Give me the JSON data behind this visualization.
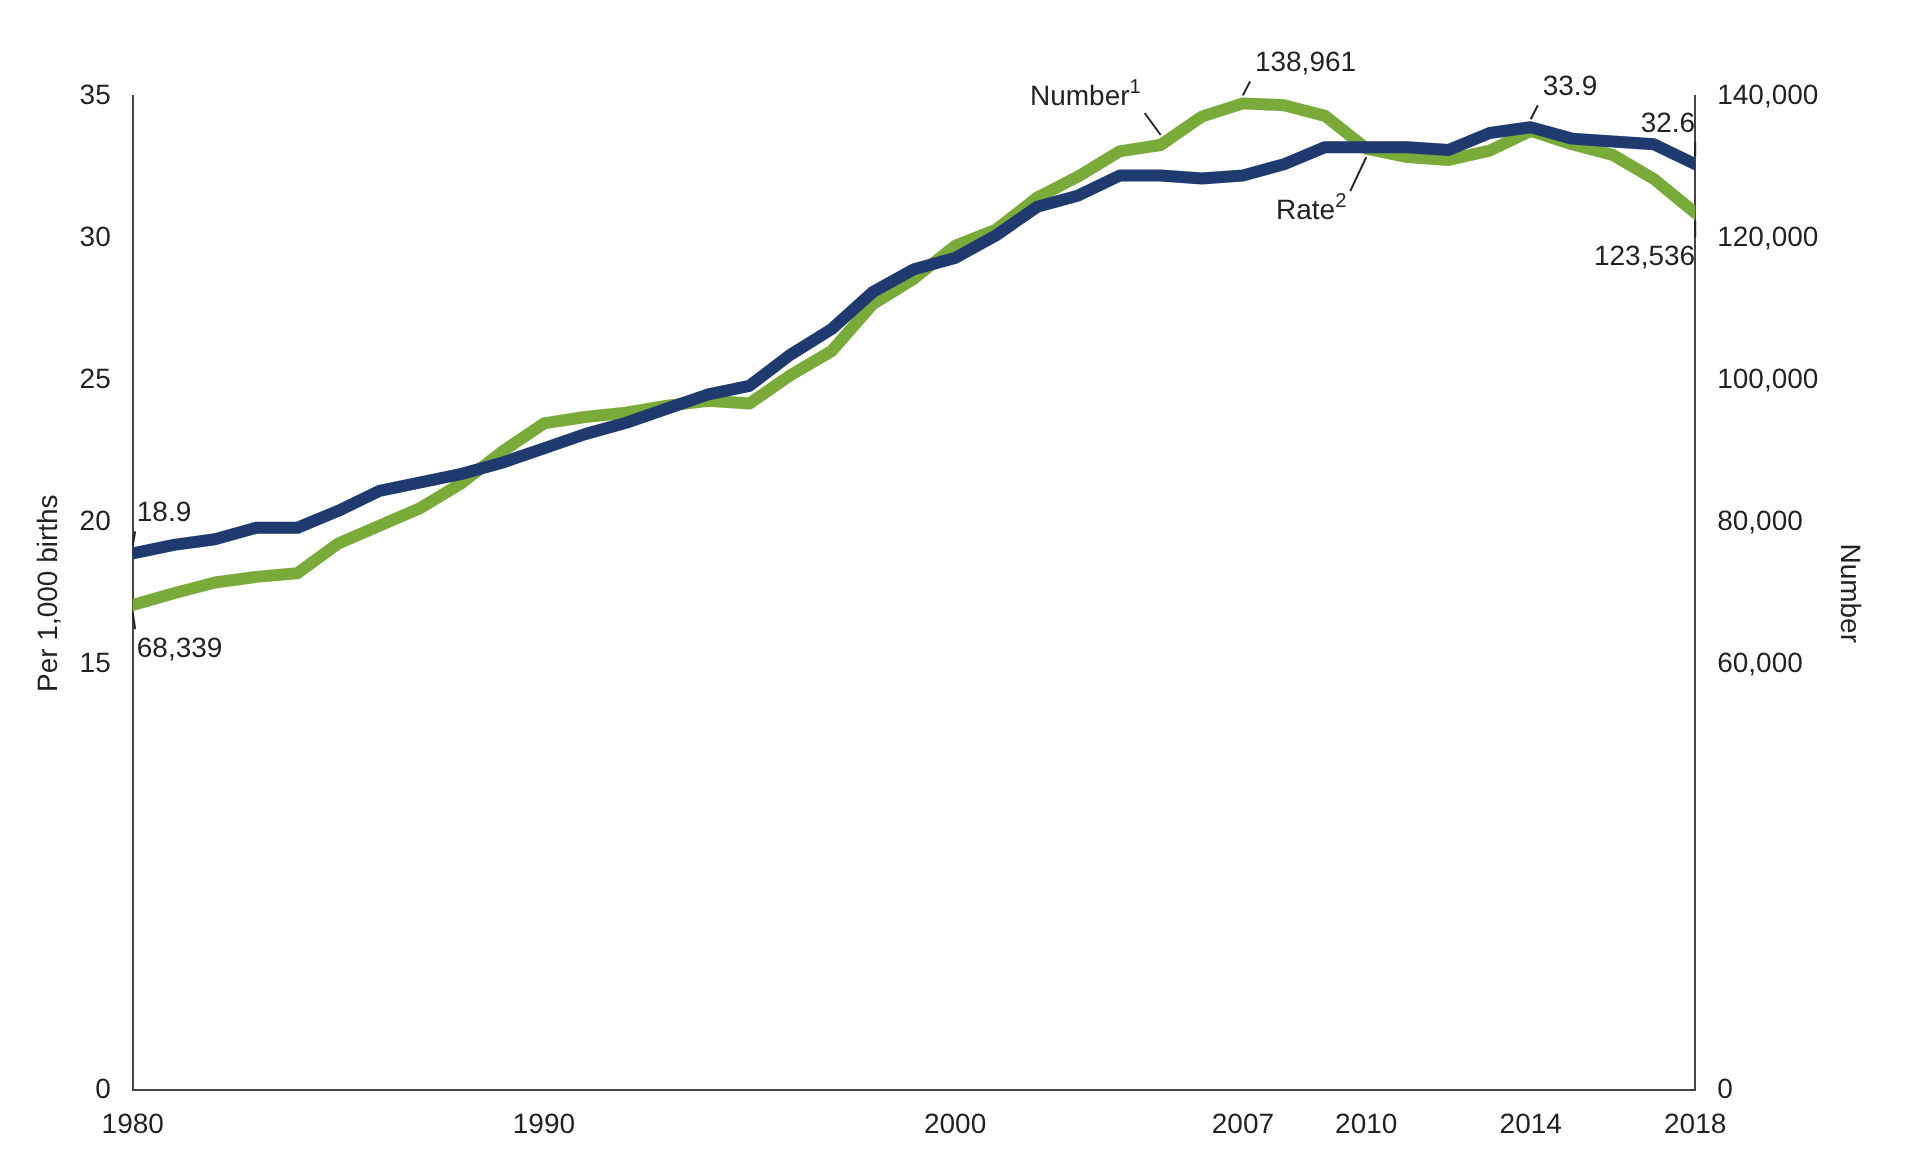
{
  "chart_data": {
    "type": "line",
    "ylabel": "Per 1,000 births",
    "y2label": "Number",
    "x": [
      1980,
      1981,
      1982,
      1983,
      1984,
      1985,
      1986,
      1987,
      1988,
      1989,
      1990,
      1991,
      1992,
      1993,
      1994,
      1995,
      1996,
      1997,
      1998,
      1999,
      2000,
      2001,
      2002,
      2003,
      2004,
      2005,
      2006,
      2007,
      2008,
      2009,
      2010,
      2011,
      2012,
      2013,
      2014,
      2015,
      2016,
      2017,
      2018
    ],
    "xlim": [
      1980,
      2018
    ],
    "xticks": [
      1980,
      1990,
      2000,
      2007,
      2010,
      2014,
      2018
    ],
    "ylim": [
      0,
      35
    ],
    "yticks": [
      0,
      15,
      20,
      25,
      30,
      35
    ],
    "y2lim": [
      0,
      140000
    ],
    "y2ticks": [
      0,
      {
        "value": 60000,
        "label": "60,000"
      },
      {
        "value": 80000,
        "label": "80,000"
      },
      {
        "value": 100000,
        "label": "100,000"
      },
      {
        "value": 120000,
        "label": "120,000"
      },
      {
        "value": 140000,
        "label": "140,000"
      }
    ],
    "series": [
      {
        "name": "Rate$^{2}$",
        "color": "#1f3a6e",
        "values": [
          18.9,
          19.2,
          19.4,
          19.8,
          19.8,
          20.4,
          21.1,
          21.4,
          21.7,
          22.1,
          22.6,
          23.1,
          23.5,
          24.0,
          24.5,
          24.8,
          25.9,
          26.8,
          28.1,
          28.9,
          29.3,
          30.1,
          31.1,
          31.5,
          32.2,
          32.2,
          32.1,
          32.2,
          32.6,
          33.2,
          33.2,
          33.2,
          33.1,
          33.7,
          33.9,
          33.5,
          33.4,
          33.3,
          32.6
        ],
        "value_labels": [
          "18.9",
          null,
          null,
          null,
          null,
          null,
          null,
          null,
          null,
          null,
          null,
          null,
          null,
          null,
          null,
          null,
          null,
          null,
          null,
          null,
          null,
          null,
          null,
          null,
          null,
          null,
          null,
          null,
          null,
          null,
          null,
          null,
          null,
          null,
          "33.9",
          null,
          null,
          null,
          "32.6"
        ]
      },
      {
        "name": "Number$^{1}$",
        "color": "#7aab3a",
        "axis": "y2",
        "values": [
          68339,
          70000,
          71500,
          72300,
          72800,
          77000,
          79500,
          82000,
          85500,
          90000,
          93900,
          94800,
          95400,
          96400,
          97100,
          96700,
          100700,
          104100,
          110700,
          114300,
          118900,
          121200,
          125700,
          128700,
          132200,
          133100,
          137100,
          138961,
          138700,
          137200,
          132600,
          131400,
          131000,
          132300,
          135100,
          133200,
          131700,
          128300,
          123536
        ],
        "value_labels": [
          "68,339",
          null,
          null,
          null,
          null,
          null,
          null,
          null,
          null,
          null,
          null,
          null,
          null,
          null,
          null,
          null,
          null,
          null,
          null,
          null,
          null,
          null,
          null,
          null,
          null,
          null,
          null,
          "138,961",
          null,
          null,
          null,
          null,
          null,
          null,
          null,
          null,
          null,
          null,
          "123,536"
        ]
      }
    ]
  }
}
